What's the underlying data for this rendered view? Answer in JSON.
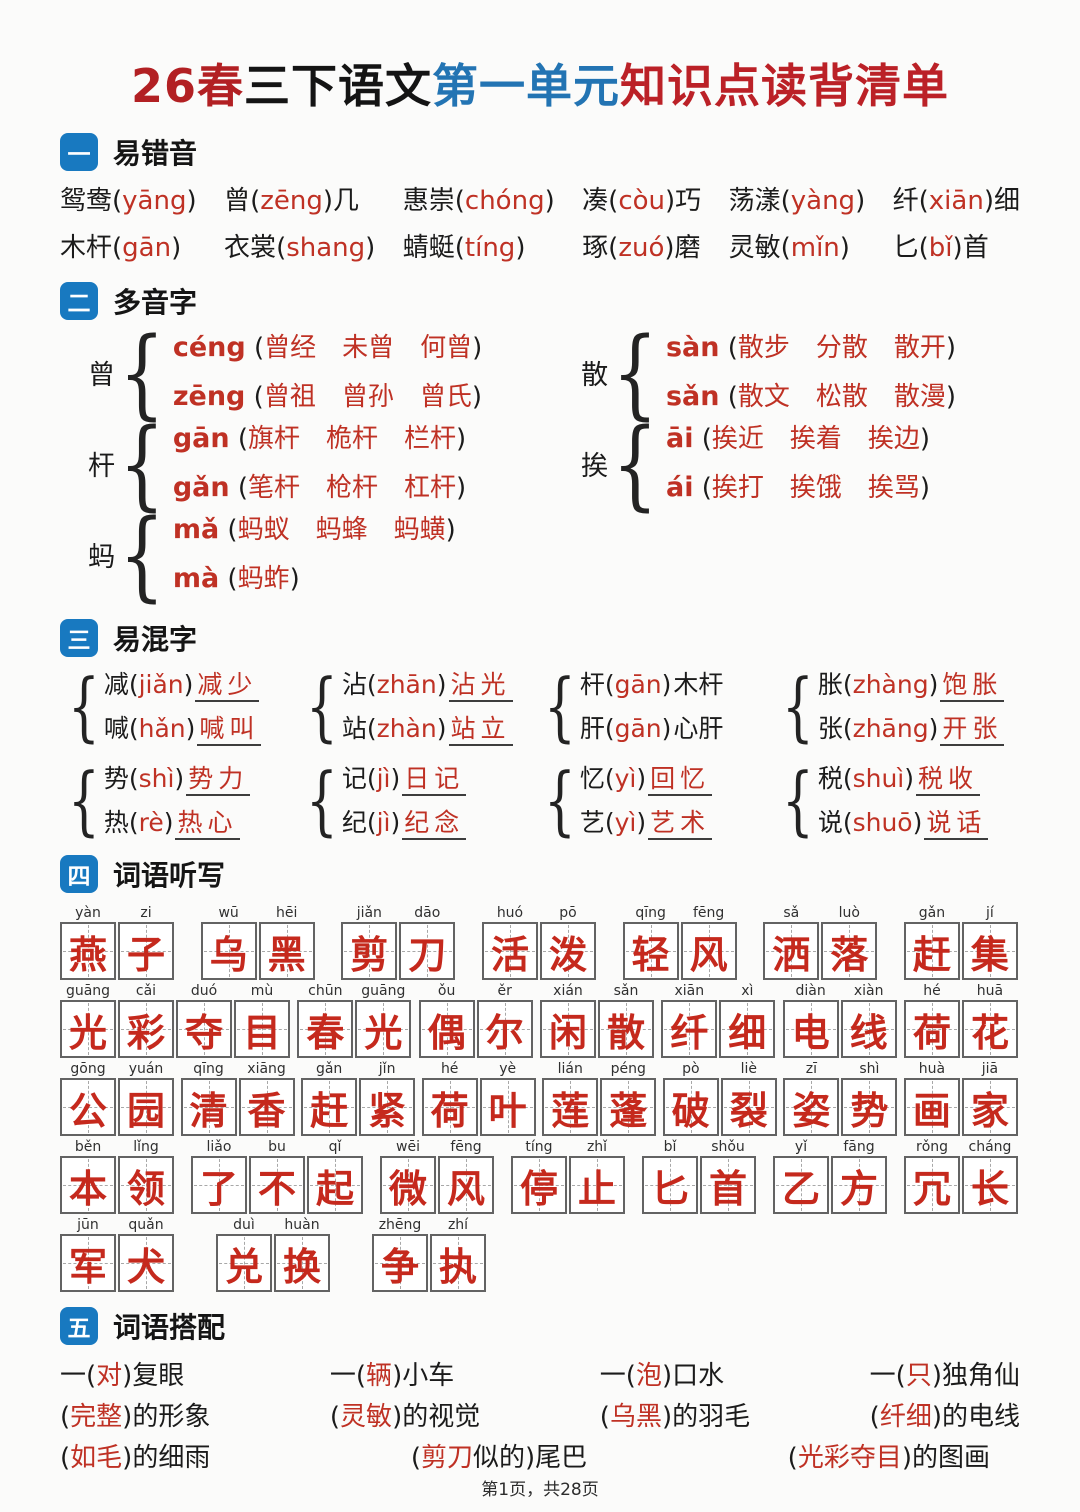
{
  "title": {
    "seg1": "26春",
    "seg2": "三下语文",
    "seg3": "第一单元",
    "seg4": "知识点读背清单"
  },
  "footer": "第1页，共28页",
  "colors": {
    "accent_red": "#bf3124",
    "grid_char_red": "#c5291d",
    "title_red": "#b22023",
    "title_blue": "#2374b3",
    "section_icon_blue": "#1879c0"
  },
  "s1": {
    "num": "一",
    "title": "易错音",
    "items": [
      [
        {
          "pre": "鸳鸯",
          "py": "yāng",
          "post": ""
        },
        {
          "pre": "曾",
          "py": "zēng",
          "post": "几"
        },
        {
          "pre": "惠崇",
          "py": "chóng",
          "post": ""
        },
        {
          "pre": "凑",
          "py": "còu",
          "post": "巧"
        },
        {
          "pre": "荡漾",
          "py": "yàng",
          "post": ""
        },
        {
          "pre": "纤",
          "py": "xiān",
          "post": "细"
        }
      ],
      [
        {
          "pre": "木杆",
          "py": "gān",
          "post": ""
        },
        {
          "pre": "衣裳",
          "py": "shang",
          "post": ""
        },
        {
          "pre": "蜻蜓",
          "py": "tíng",
          "post": ""
        },
        {
          "pre": "琢",
          "py": "zuó",
          "post": "磨"
        },
        {
          "pre": "灵敏",
          "py": "mǐn",
          "post": ""
        },
        {
          "pre": "匕",
          "py": "bǐ",
          "post": "首"
        }
      ]
    ]
  },
  "s2": {
    "num": "二",
    "title": "多音字",
    "columns": [
      [
        {
          "char": "曾",
          "readings": [
            {
              "py": "céng",
              "words": [
                "曾经",
                "未曾",
                "何曾"
              ]
            },
            {
              "py": "zēng",
              "words": [
                "曾祖",
                "曾孙",
                "曾氏"
              ]
            }
          ]
        },
        {
          "char": "杆",
          "readings": [
            {
              "py": "gān",
              "words": [
                "旗杆",
                "桅杆",
                "栏杆"
              ]
            },
            {
              "py": "gǎn",
              "words": [
                "笔杆",
                "枪杆",
                "杠杆"
              ]
            }
          ]
        },
        {
          "char": "蚂",
          "readings": [
            {
              "py": "mǎ",
              "words": [
                "蚂蚁",
                "蚂蜂",
                "蚂蟥"
              ]
            },
            {
              "py": "mà",
              "words": [
                "蚂蚱"
              ]
            }
          ]
        }
      ],
      [
        {
          "char": "散",
          "readings": [
            {
              "py": "sàn",
              "words": [
                "散步",
                "分散",
                "散开"
              ]
            },
            {
              "py": "sǎn",
              "words": [
                "散文",
                "松散",
                "散漫"
              ]
            }
          ]
        },
        {
          "char": "挨",
          "readings": [
            {
              "py": "āi",
              "words": [
                "挨近",
                "挨着",
                "挨边"
              ]
            },
            {
              "py": "ái",
              "words": [
                "挨打",
                "挨饿",
                "挨骂"
              ]
            }
          ]
        }
      ]
    ]
  },
  "s3": {
    "num": "三",
    "title": "易混字",
    "groups": [
      {
        "pairs": [
          {
            "char": "减",
            "py": "jiǎn",
            "word": "减少",
            "style": "ru"
          },
          {
            "char": "喊",
            "py": "hǎn",
            "word": "喊叫",
            "style": "ru"
          }
        ]
      },
      {
        "pairs": [
          {
            "char": "沾",
            "py": "zhān",
            "word": "沾光",
            "style": "ru"
          },
          {
            "char": "站",
            "py": "zhàn",
            "word": "站立",
            "style": "ru"
          }
        ]
      },
      {
        "pairs": [
          {
            "char": "杆",
            "py": "gān",
            "word": "木杆",
            "style": "plain"
          },
          {
            "char": "肝",
            "py": "gān",
            "word": "心肝",
            "style": "plain"
          }
        ]
      },
      {
        "pairs": [
          {
            "char": "胀",
            "py": "zhàng",
            "word": "饱胀",
            "style": "ru"
          },
          {
            "char": "张",
            "py": "zhāng",
            "word": "开张",
            "style": "ru"
          }
        ]
      },
      {
        "pairs": [
          {
            "char": "势",
            "py": "shì",
            "word": "势力",
            "style": "ru"
          },
          {
            "char": "热",
            "py": "rè",
            "word": "热心",
            "style": "ru"
          }
        ]
      },
      {
        "pairs": [
          {
            "char": "记",
            "py": "jì",
            "word": "日记",
            "style": "ru"
          },
          {
            "char": "纪",
            "py": "jì",
            "word": "纪念",
            "style": "ru"
          }
        ]
      },
      {
        "pairs": [
          {
            "char": "忆",
            "py": "yì",
            "word": "回忆",
            "style": "ru"
          },
          {
            "char": "艺",
            "py": "yì",
            "word": "艺术",
            "style": "ru"
          }
        ]
      },
      {
        "pairs": [
          {
            "char": "税",
            "py": "shuì",
            "word": "税收",
            "style": "ru"
          },
          {
            "char": "说",
            "py": "shuō",
            "word": "说话",
            "style": "ru"
          }
        ]
      }
    ]
  },
  "s4": {
    "num": "四",
    "title": "词语听写",
    "rows": [
      [
        {
          "cells": [
            {
              "py": "yàn",
              "char": "燕"
            },
            {
              "py": "zi",
              "char": "子"
            }
          ]
        },
        {
          "cells": [
            {
              "py": "wū",
              "char": "乌"
            },
            {
              "py": "hēi",
              "char": "黑"
            }
          ]
        },
        {
          "cells": [
            {
              "py": "jiǎn",
              "char": "剪"
            },
            {
              "py": "dāo",
              "char": "刀"
            }
          ]
        },
        {
          "cells": [
            {
              "py": "huó",
              "char": "活"
            },
            {
              "py": "pō",
              "char": "泼"
            }
          ]
        },
        {
          "cells": [
            {
              "py": "qīng",
              "char": "轻"
            },
            {
              "py": "fēng",
              "char": "风"
            }
          ]
        },
        {
          "cells": [
            {
              "py": "sǎ",
              "char": "洒"
            },
            {
              "py": "luò",
              "char": "落"
            }
          ]
        },
        {
          "cells": [
            {
              "py": "gǎn",
              "char": "赶"
            },
            {
              "py": "jí",
              "char": "集"
            }
          ]
        }
      ],
      [
        {
          "cells": [
            {
              "py": "guāng",
              "char": "光"
            },
            {
              "py": "cǎi",
              "char": "彩"
            },
            {
              "py": "duó",
              "char": "夺"
            },
            {
              "py": "mù",
              "char": "目"
            }
          ]
        },
        {
          "cells": [
            {
              "py": "chūn",
              "char": "春"
            },
            {
              "py": "guāng",
              "char": "光"
            }
          ]
        },
        {
          "cells": [
            {
              "py": "ǒu",
              "char": "偶"
            },
            {
              "py": "ěr",
              "char": "尔"
            }
          ]
        },
        {
          "cells": [
            {
              "py": "xián",
              "char": "闲"
            },
            {
              "py": "sǎn",
              "char": "散"
            }
          ]
        },
        {
          "cells": [
            {
              "py": "xiān",
              "char": "纤"
            },
            {
              "py": "xì",
              "char": "细"
            }
          ]
        },
        {
          "cells": [
            {
              "py": "diàn",
              "char": "电"
            },
            {
              "py": "xiàn",
              "char": "线"
            }
          ]
        },
        {
          "cells": [
            {
              "py": "hé",
              "char": "荷"
            },
            {
              "py": "huā",
              "char": "花"
            }
          ]
        }
      ],
      [
        {
          "cells": [
            {
              "py": "gōng",
              "char": "公"
            },
            {
              "py": "yuán",
              "char": "园"
            }
          ]
        },
        {
          "cells": [
            {
              "py": "qīng",
              "char": "清"
            },
            {
              "py": "xiāng",
              "char": "香"
            }
          ]
        },
        {
          "cells": [
            {
              "py": "gǎn",
              "char": "赶"
            },
            {
              "py": "jǐn",
              "char": "紧"
            }
          ]
        },
        {
          "cells": [
            {
              "py": "hé",
              "char": "荷"
            },
            {
              "py": "yè",
              "char": "叶"
            }
          ]
        },
        {
          "cells": [
            {
              "py": "lián",
              "char": "莲"
            },
            {
              "py": "péng",
              "char": "蓬"
            }
          ]
        },
        {
          "cells": [
            {
              "py": "pò",
              "char": "破"
            },
            {
              "py": "liè",
              "char": "裂"
            }
          ]
        },
        {
          "cells": [
            {
              "py": "zī",
              "char": "姿"
            },
            {
              "py": "shì",
              "char": "势"
            }
          ]
        },
        {
          "cells": [
            {
              "py": "huà",
              "char": "画"
            },
            {
              "py": "jiā",
              "char": "家"
            }
          ]
        }
      ],
      [
        {
          "cells": [
            {
              "py": "běn",
              "char": "本"
            },
            {
              "py": "lǐng",
              "char": "领"
            }
          ]
        },
        {
          "cells": [
            {
              "py": "liǎo",
              "char": "了"
            },
            {
              "py": "bu",
              "char": "不"
            },
            {
              "py": "qǐ",
              "char": "起"
            }
          ]
        },
        {
          "cells": [
            {
              "py": "wēi",
              "char": "微"
            },
            {
              "py": "fēng",
              "char": "风"
            }
          ]
        },
        {
          "cells": [
            {
              "py": "tíng",
              "char": "停"
            },
            {
              "py": "zhǐ",
              "char": "止"
            }
          ]
        },
        {
          "cells": [
            {
              "py": "bǐ",
              "char": "匕"
            },
            {
              "py": "shǒu",
              "char": "首"
            }
          ]
        },
        {
          "cells": [
            {
              "py": "yǐ",
              "char": "乙"
            },
            {
              "py": "fāng",
              "char": "方"
            }
          ]
        },
        {
          "cells": [
            {
              "py": "rǒng",
              "char": "冗"
            },
            {
              "py": "cháng",
              "char": "长"
            }
          ]
        }
      ],
      [
        {
          "cells": [
            {
              "py": "jūn",
              "char": "军"
            },
            {
              "py": "quǎn",
              "char": "犬"
            }
          ]
        },
        {
          "cells": [
            {
              "py": "duì",
              "char": "兑"
            },
            {
              "py": "huàn",
              "char": "换"
            }
          ]
        },
        {
          "cells": [
            {
              "py": "zhēng",
              "char": "争"
            },
            {
              "py": "zhí",
              "char": "执"
            }
          ]
        }
      ]
    ]
  },
  "s5": {
    "num": "五",
    "title": "词语搭配",
    "rows": [
      [
        {
          "pre": "一(",
          "red": "对",
          "post": ")复眼"
        },
        {
          "pre": "一(",
          "red": "辆",
          "post": ")小车"
        },
        {
          "pre": "一(",
          "red": "泡",
          "post": ")口水"
        },
        {
          "pre": "一(",
          "red": "只",
          "post": ")独角仙"
        }
      ],
      [
        {
          "pre": "(",
          "red": "完整",
          "post": ")的形象"
        },
        {
          "pre": "(",
          "red": "灵敏",
          "post": ")的视觉"
        },
        {
          "pre": "(",
          "red": "乌黑",
          "post": ")的羽毛"
        },
        {
          "pre": "(",
          "red": "纤细",
          "post": ")的电线"
        }
      ],
      [
        {
          "pre": "(",
          "red": "如毛",
          "post": ")的细雨"
        },
        {
          "pre": "(",
          "red": "剪刀",
          "post": "似的)尾巴"
        },
        {
          "pre": "(",
          "red": "光彩夺目",
          "post": ")的图画"
        }
      ]
    ]
  }
}
